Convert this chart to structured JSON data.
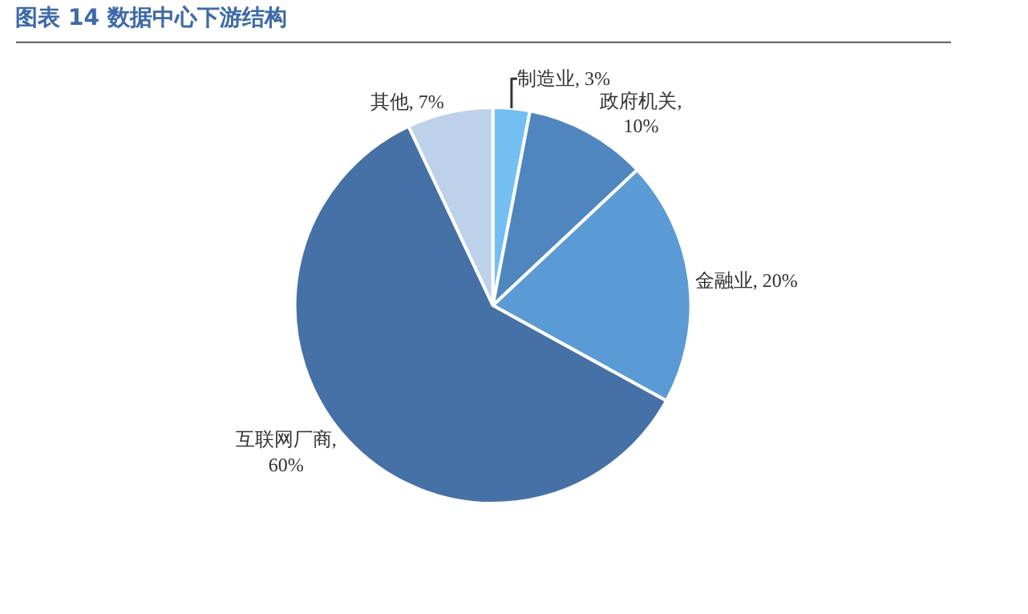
{
  "chart_data": {
    "type": "pie",
    "title": "图表 14 数据中心下游结构",
    "categories": [
      "制造业",
      "政府机关",
      "金融业",
      "互联网厂商",
      "其他"
    ],
    "values": [
      3,
      10,
      20,
      60,
      7
    ],
    "colors": [
      "#73bff2",
      "#4f86bf",
      "#5b9bd5",
      "#4571a6",
      "#bdd1ea"
    ],
    "value_labels": [
      ", 3%",
      ",\n10%",
      ", 20%",
      ",\n60%",
      ", 7%"
    ],
    "legend": false
  }
}
